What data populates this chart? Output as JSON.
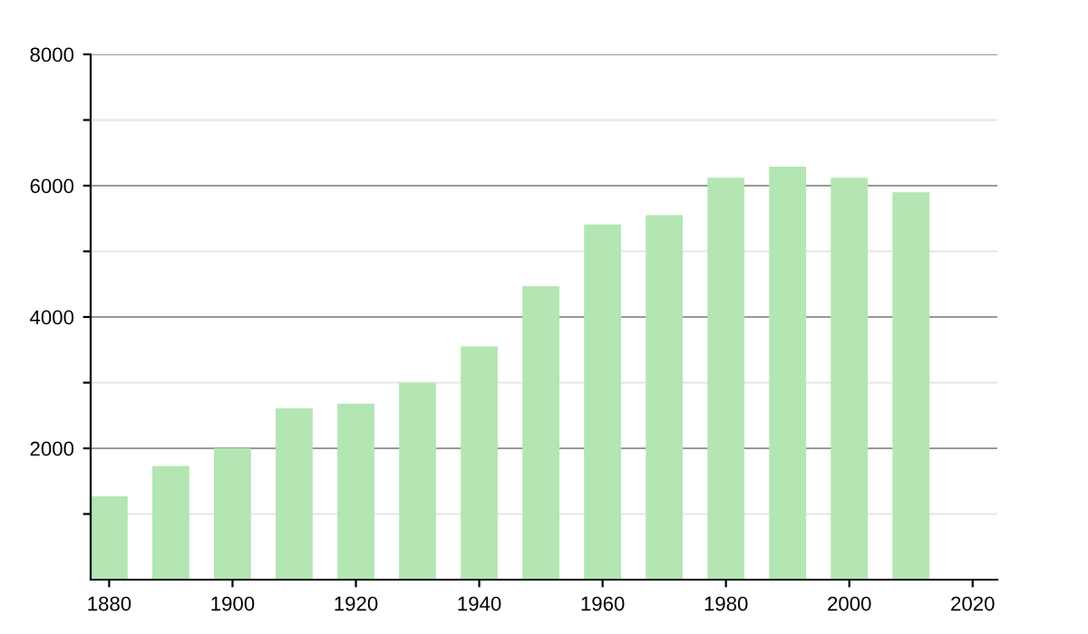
{
  "chart_data": {
    "type": "bar",
    "x": [
      1880,
      1890,
      1900,
      1910,
      1920,
      1930,
      1940,
      1950,
      1960,
      1970,
      1980,
      1990,
      2000,
      2010
    ],
    "values": [
      1270,
      1730,
      2000,
      2610,
      2680,
      3000,
      3550,
      4470,
      5410,
      5550,
      6120,
      6290,
      6120,
      5900
    ],
    "color": "#b3e6b3",
    "xlim": [
      1877,
      2024
    ],
    "xticks": [
      1880,
      1900,
      1920,
      1940,
      1960,
      1980,
      2000,
      2020
    ],
    "ylim": [
      0,
      8000
    ],
    "yticks": [
      {
        "value": 1000,
        "label": null
      },
      2000,
      {
        "value": 3000,
        "label": null
      },
      4000,
      {
        "value": 5000,
        "label": null
      },
      6000,
      {
        "value": 7000,
        "label": null
      },
      8000
    ],
    "grid": "y"
  }
}
